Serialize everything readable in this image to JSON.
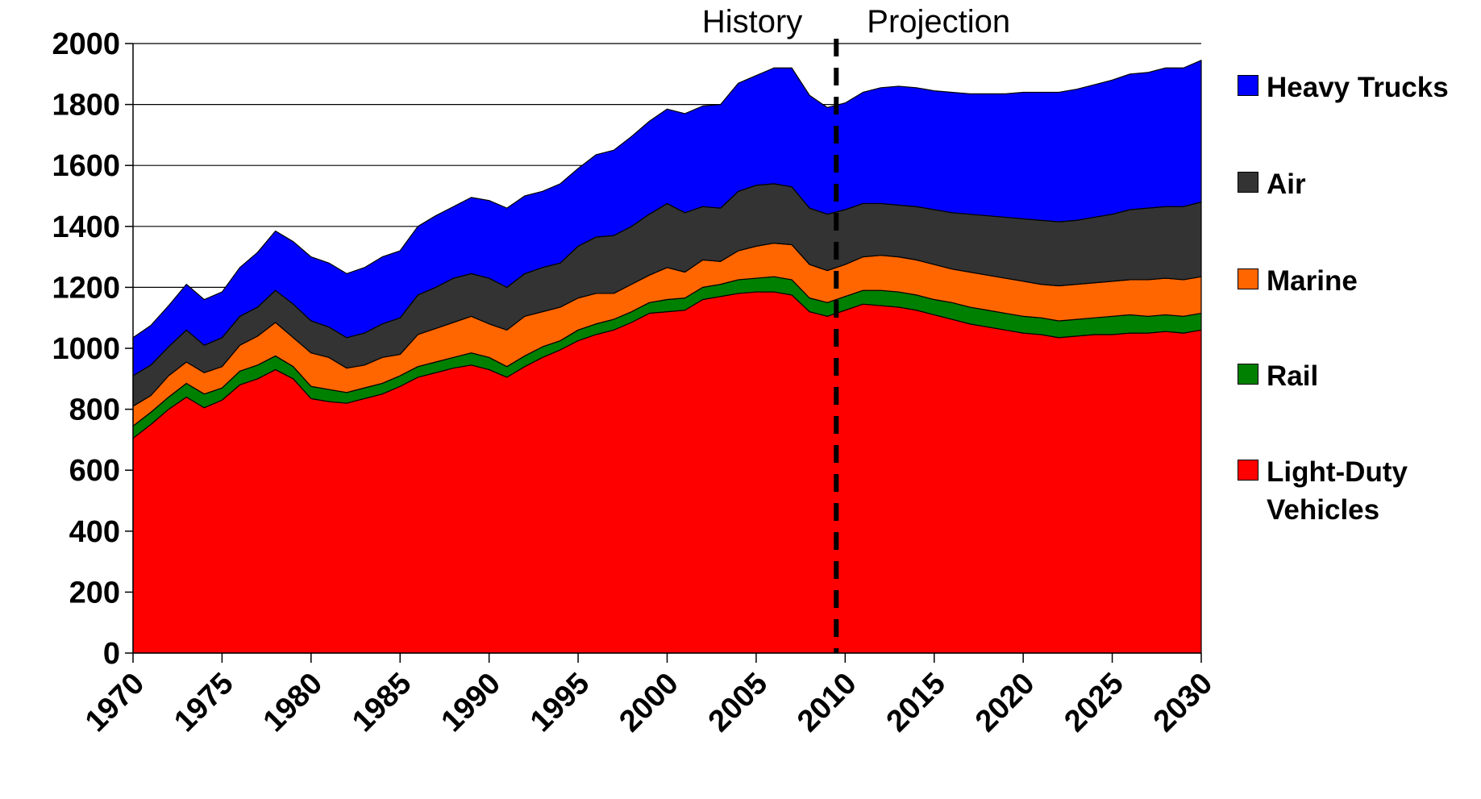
{
  "chart_data": {
    "type": "stacked-area",
    "x": [
      1970,
      1971,
      1972,
      1973,
      1974,
      1975,
      1976,
      1977,
      1978,
      1979,
      1980,
      1981,
      1982,
      1983,
      1984,
      1985,
      1986,
      1987,
      1988,
      1989,
      1990,
      1991,
      1992,
      1993,
      1994,
      1995,
      1996,
      1997,
      1998,
      1999,
      2000,
      2001,
      2002,
      2003,
      2004,
      2005,
      2006,
      2007,
      2008,
      2009,
      2010,
      2011,
      2012,
      2013,
      2014,
      2015,
      2016,
      2017,
      2018,
      2019,
      2020,
      2021,
      2022,
      2023,
      2024,
      2025,
      2026,
      2027,
      2028,
      2029,
      2030
    ],
    "series": [
      {
        "name": "Light-Duty Vehicles",
        "color": "#ff0000",
        "values": [
          705,
          750,
          800,
          840,
          805,
          830,
          880,
          900,
          930,
          900,
          835,
          825,
          820,
          835,
          850,
          875,
          905,
          920,
          935,
          945,
          930,
          905,
          940,
          970,
          995,
          1025,
          1045,
          1060,
          1085,
          1115,
          1120,
          1125,
          1160,
          1170,
          1180,
          1185,
          1185,
          1175,
          1120,
          1105,
          1125,
          1145,
          1140,
          1135,
          1125,
          1110,
          1095,
          1080,
          1070,
          1060,
          1050,
          1045,
          1035,
          1040,
          1045,
          1045,
          1050,
          1050,
          1055,
          1050,
          1060
        ]
      },
      {
        "name": "Rail",
        "color": "#008000",
        "values": [
          40,
          40,
          40,
          45,
          45,
          40,
          45,
          45,
          45,
          40,
          40,
          40,
          35,
          35,
          35,
          35,
          35,
          35,
          35,
          40,
          40,
          35,
          35,
          35,
          30,
          35,
          35,
          35,
          35,
          35,
          40,
          40,
          40,
          40,
          45,
          45,
          50,
          50,
          45,
          45,
          45,
          45,
          50,
          50,
          50,
          50,
          55,
          55,
          55,
          55,
          55,
          55,
          55,
          55,
          55,
          60,
          60,
          55,
          55,
          55,
          55
        ]
      },
      {
        "name": "Marine",
        "color": "#ff6600",
        "values": [
          65,
          55,
          70,
          70,
          70,
          70,
          85,
          95,
          110,
          95,
          110,
          105,
          80,
          75,
          85,
          70,
          105,
          110,
          115,
          120,
          110,
          120,
          130,
          115,
          110,
          105,
          100,
          85,
          90,
          90,
          105,
          85,
          90,
          75,
          95,
          105,
          110,
          115,
          110,
          105,
          105,
          110,
          115,
          115,
          115,
          115,
          110,
          115,
          115,
          115,
          115,
          110,
          115,
          115,
          115,
          115,
          115,
          120,
          120,
          120,
          120
        ]
      },
      {
        "name": "Air",
        "color": "#333333",
        "values": [
          100,
          100,
          95,
          105,
          90,
          95,
          95,
          95,
          105,
          110,
          105,
          100,
          100,
          105,
          110,
          120,
          130,
          135,
          145,
          140,
          150,
          140,
          140,
          145,
          145,
          170,
          185,
          190,
          190,
          200,
          210,
          195,
          175,
          175,
          195,
          200,
          195,
          190,
          185,
          185,
          180,
          175,
          170,
          170,
          175,
          180,
          185,
          190,
          195,
          200,
          205,
          210,
          210,
          210,
          215,
          220,
          230,
          235,
          235,
          240,
          245
        ]
      },
      {
        "name": "Heavy Trucks",
        "color": "#0000ff",
        "values": [
          125,
          130,
          135,
          150,
          150,
          150,
          160,
          180,
          195,
          205,
          210,
          210,
          210,
          215,
          220,
          220,
          225,
          235,
          235,
          250,
          255,
          260,
          255,
          250,
          260,
          255,
          270,
          280,
          295,
          305,
          310,
          325,
          330,
          340,
          355,
          360,
          380,
          390,
          370,
          350,
          350,
          365,
          380,
          390,
          390,
          390,
          395,
          395,
          400,
          405,
          415,
          420,
          425,
          430,
          435,
          440,
          445,
          445,
          455,
          455,
          465
        ]
      }
    ],
    "xlim": [
      1970,
      2030
    ],
    "xticks": [
      1970,
      1975,
      1980,
      1985,
      1990,
      1995,
      2000,
      2005,
      2010,
      2015,
      2020,
      2025,
      2030
    ],
    "ylim": [
      0,
      2000
    ],
    "yticks": [
      0,
      200,
      400,
      600,
      800,
      1000,
      1200,
      1400,
      1600,
      1800,
      2000
    ],
    "grid": true,
    "legend": "right",
    "annotations": {
      "history": "History",
      "projection": "Projection",
      "divider_x": 2009.5
    }
  }
}
